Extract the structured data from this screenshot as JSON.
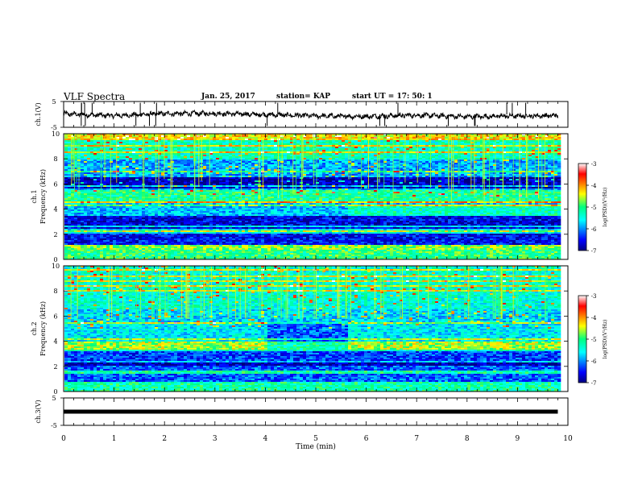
{
  "header": {
    "title": "VLF Spectra",
    "date": "Jan. 25, 2017",
    "station": "station= KAP",
    "start": "start UT =  17: 50: 1"
  },
  "chart_data": [
    {
      "type": "line",
      "ylabel": "ch.1(V)",
      "ylim": [
        -5,
        5
      ],
      "yticks": [
        "5",
        "-5"
      ],
      "trace": "noisy waveform, amplitude approx ±1.5 V around -0.5 V",
      "x": [
        0,
        1,
        2,
        3,
        4,
        5,
        6,
        7,
        8,
        9,
        9.8
      ],
      "y": [
        0.2,
        -0.5,
        0.3,
        0.4,
        -0.1,
        -0.6,
        -0.8,
        -0.3,
        -0.9,
        -0.6,
        -0.5
      ]
    },
    {
      "type": "heatmap",
      "ylabel": "ch.1",
      "ylabel2": "Frequency (kHz)",
      "yticks": [
        "0",
        "2",
        "4",
        "6",
        "8",
        "10"
      ],
      "ylim": [
        0,
        10
      ],
      "xlim": [
        0,
        10
      ],
      "data_end_min": 9.8,
      "colorbar": {
        "label": "log(PSD)(V²/Hz)",
        "ticks": [
          "-3",
          "-4",
          "-5",
          "-6",
          "-7"
        ],
        "range": [
          -7,
          -3
        ]
      },
      "bands": [
        {
          "f": [
            0.0,
            0.8
          ],
          "level": -5.0
        },
        {
          "f": [
            0.8,
            1.2
          ],
          "level": -4.7
        },
        {
          "f": [
            1.2,
            2.0
          ],
          "level": -6.5
        },
        {
          "f": [
            2.0,
            2.5
          ],
          "level": -5.6
        },
        {
          "f": [
            2.5,
            3.5
          ],
          "level": -6.6
        },
        {
          "f": [
            3.5,
            4.5
          ],
          "level": -5.8
        },
        {
          "f": [
            4.5,
            5.5
          ],
          "level": -5.1
        },
        {
          "f": [
            5.5,
            6.5
          ],
          "level": -6.8
        },
        {
          "f": [
            6.5,
            8.0
          ],
          "level": -5.9
        },
        {
          "f": [
            8.0,
            10.0
          ],
          "level": -5.3
        }
      ]
    },
    {
      "type": "heatmap",
      "ylabel": "ch.2",
      "ylabel2": "Frequency (kHz)",
      "yticks": [
        "0",
        "2",
        "4",
        "6",
        "8",
        "10"
      ],
      "ylim": [
        0,
        10
      ],
      "xlim": [
        0,
        10
      ],
      "data_end_min": 9.8,
      "colorbar": {
        "label": "log(PSD)(V²/Hz)",
        "ticks": [
          "-3",
          "-4",
          "-5",
          "-6",
          "-7"
        ],
        "range": [
          -7,
          -3
        ]
      },
      "bands": [
        {
          "f": [
            0.0,
            0.8
          ],
          "level": -5.2
        },
        {
          "f": [
            0.8,
            2.0
          ],
          "level": -6.2
        },
        {
          "f": [
            2.0,
            2.5
          ],
          "level": -6.8
        },
        {
          "f": [
            2.5,
            3.3
          ],
          "level": -6.3
        },
        {
          "f": [
            3.3,
            4.0
          ],
          "level": -4.6
        },
        {
          "f": [
            4.0,
            5.5
          ],
          "level": -5.6
        },
        {
          "f": [
            5.5,
            6.5
          ],
          "level": -5.7
        },
        {
          "f": [
            6.5,
            10.0
          ],
          "level": -5.4
        }
      ]
    },
    {
      "type": "line",
      "ylabel": "ch.3(V)",
      "ylim": [
        -5,
        5
      ],
      "yticks": [
        "5",
        "-5"
      ],
      "x": [
        0,
        9.8
      ],
      "y": [
        0,
        0
      ]
    }
  ],
  "xaxis": {
    "label": "Time (min)",
    "ticks": [
      "0",
      "1",
      "2",
      "3",
      "4",
      "5",
      "6",
      "7",
      "8",
      "9",
      "10"
    ],
    "range": [
      0,
      10
    ]
  },
  "colors": {
    "spectrum_low": "#00007f",
    "spectrum_mid": "#00ff7f",
    "spectrum_high": "#ff0000"
  }
}
